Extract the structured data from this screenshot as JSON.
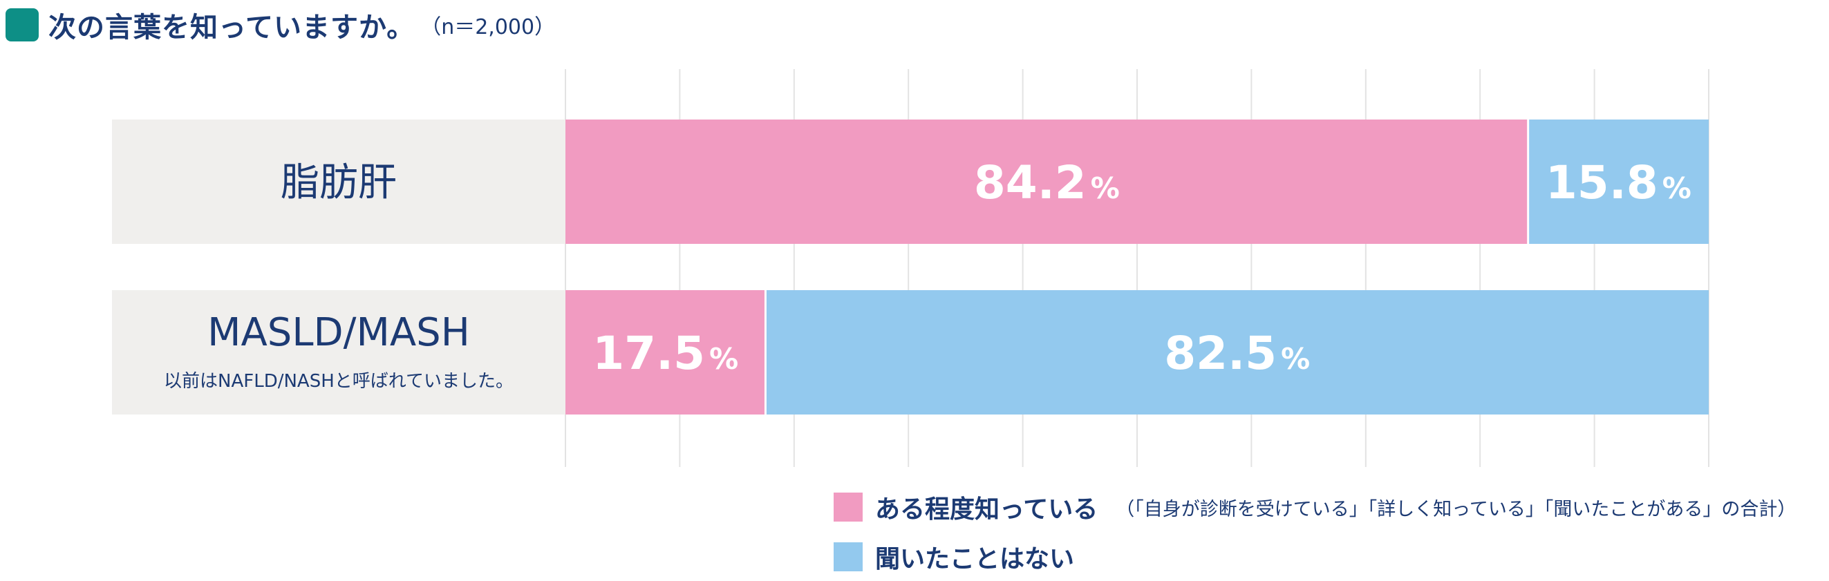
{
  "title": {
    "text": "次の言葉を知っていますか。",
    "n_label": "（n＝2,000）"
  },
  "colors": {
    "title_mark": "#0d8f86",
    "text": "#1c3a73",
    "category_bg": "#f0efed",
    "aware": "#f19bc1",
    "not_heard": "#93c9ee",
    "grid": "#e3e3e3"
  },
  "chart_data": {
    "type": "bar",
    "orientation": "horizontal",
    "stacked": true,
    "unit": "%",
    "xlim": [
      0,
      100
    ],
    "grid": true,
    "categories": [
      {
        "label": "脂肪肝",
        "sublabel": ""
      },
      {
        "label": "MASLD/MASH",
        "sublabel": "以前はNAFLD/NASHと呼ばれていました。"
      }
    ],
    "series": [
      {
        "name": "ある程度知っている",
        "color": "#f19bc1",
        "values": [
          84.2,
          17.5
        ]
      },
      {
        "name": "聞いたことはない",
        "color": "#93c9ee",
        "values": [
          15.8,
          82.5
        ]
      }
    ],
    "legend_position": "bottom-right"
  },
  "legend": {
    "items": [
      {
        "label": "ある程度知っている",
        "note": "（「自身が診断を受けている」「詳しく知っている」「聞いたことがある」の合計）",
        "color": "#f19bc1"
      },
      {
        "label": "聞いたことはない",
        "note": "",
        "color": "#93c9ee"
      }
    ]
  }
}
